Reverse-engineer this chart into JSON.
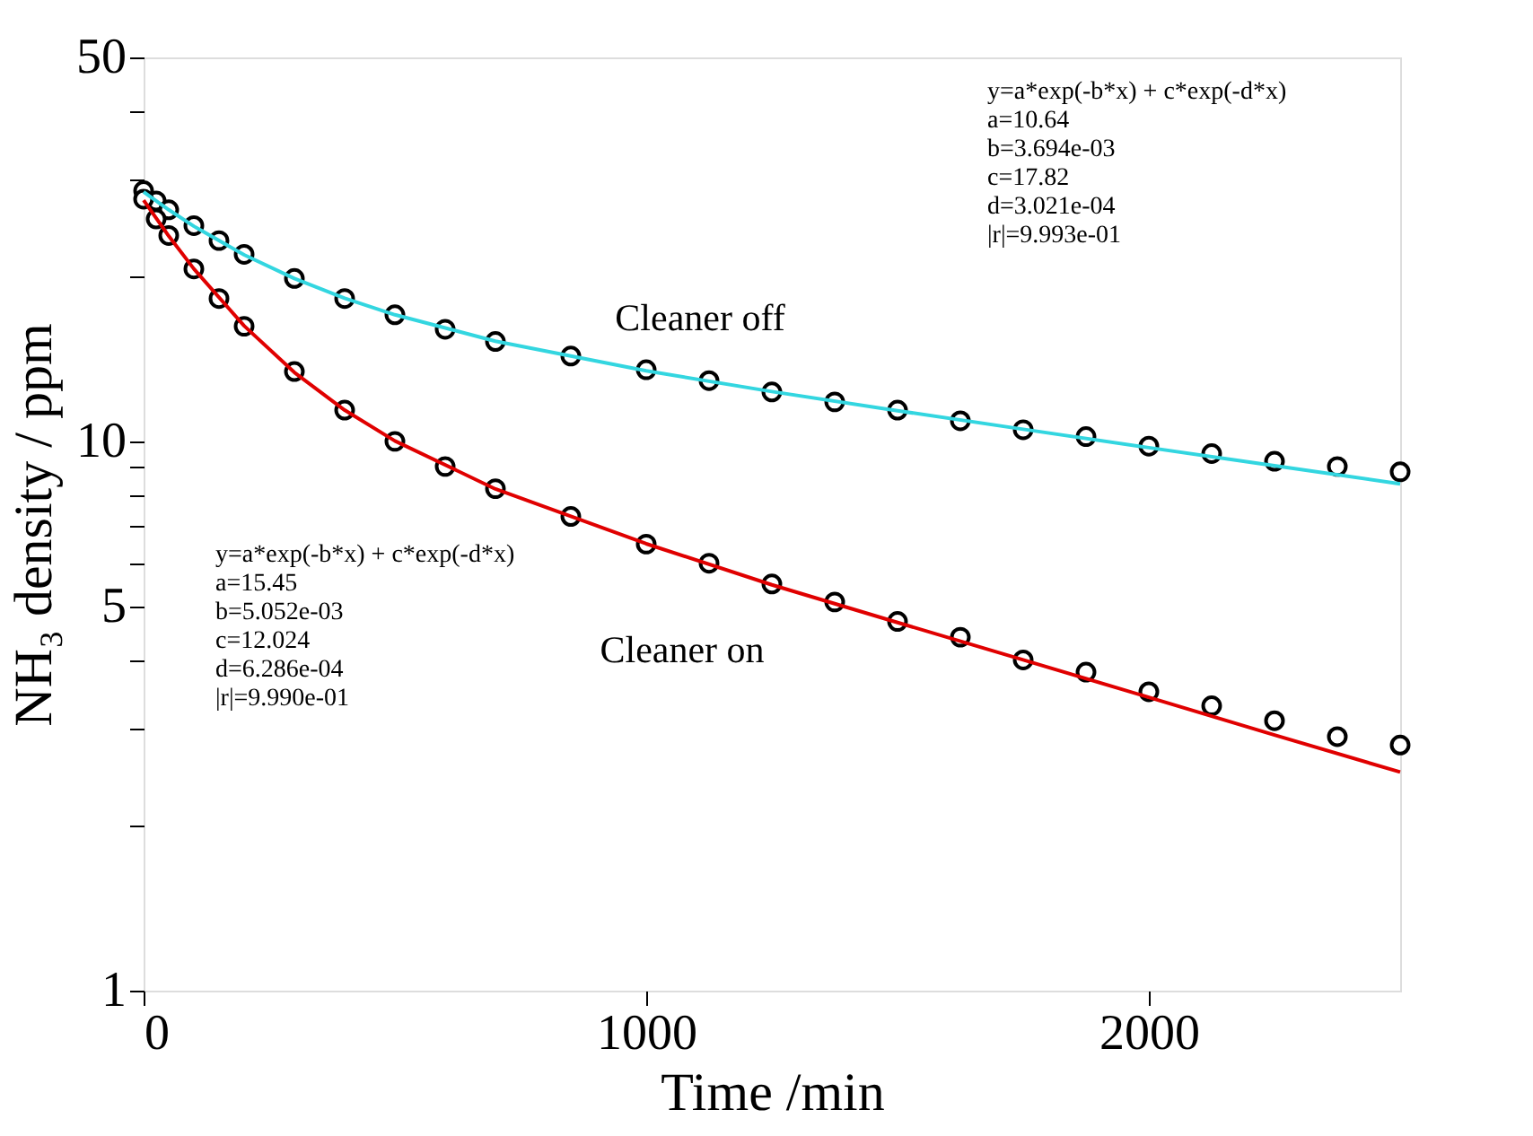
{
  "chart_data": {
    "type": "scatter",
    "xlabel": "Time /min",
    "ylabel": "NH₃ density / ppm",
    "log": "y",
    "xlim": [
      0,
      2500
    ],
    "xticks": [
      0,
      1000,
      2000
    ],
    "ylim": [
      1,
      50
    ],
    "yticks": [
      1,
      {
        "value": 2,
        "label": null
      },
      {
        "value": 3,
        "label": null
      },
      {
        "value": 4,
        "label": null
      },
      5,
      {
        "value": 6,
        "label": null
      },
      {
        "value": 7,
        "label": null
      },
      {
        "value": 8,
        "label": null
      },
      {
        "value": 9,
        "label": null
      },
      10,
      {
        "value": 20,
        "label": null
      },
      {
        "value": 30,
        "label": null
      },
      {
        "value": 40,
        "label": null
      },
      50
    ],
    "grid": false,
    "marker": "circle",
    "series": [
      {
        "name": "Cleaner off",
        "color": "#000000",
        "x": [
          0,
          25,
          50,
          100,
          150,
          200,
          300,
          400,
          500,
          600,
          700,
          850,
          1000,
          1125,
          1250,
          1375,
          1500,
          1625,
          1750,
          1875,
          2000,
          2125,
          2250,
          2375,
          2500
        ],
        "values": [
          28.6,
          27.4,
          26.4,
          24.7,
          23.2,
          21.9,
          19.8,
          18.2,
          17.0,
          16.0,
          15.2,
          14.3,
          13.5,
          12.9,
          12.3,
          11.8,
          11.4,
          10.9,
          10.5,
          10.2,
          9.8,
          9.5,
          9.2,
          9.0,
          8.8
        ]
      },
      {
        "name": "Cleaner on",
        "color": "#000000",
        "x": [
          0,
          25,
          50,
          100,
          150,
          200,
          300,
          400,
          500,
          600,
          700,
          850,
          1000,
          1125,
          1250,
          1375,
          1500,
          1625,
          1750,
          1875,
          2000,
          2125,
          2250,
          2375,
          2500
        ],
        "values": [
          27.6,
          25.4,
          23.7,
          20.6,
          18.2,
          16.2,
          13.4,
          11.4,
          10.0,
          9.0,
          8.2,
          7.3,
          6.5,
          6.0,
          5.5,
          5.1,
          4.7,
          4.4,
          4.0,
          3.8,
          3.5,
          3.3,
          3.1,
          2.9,
          2.8
        ]
      },
      {
        "type": "line",
        "marker": "none",
        "line_style": "solid",
        "color": "#33d6e0",
        "x": [
          0,
          50,
          100,
          200,
          300,
          400,
          500,
          700,
          1000,
          1250,
          1500,
          1750,
          2000,
          2250,
          2500
        ],
        "values": [
          28.46,
          26.4,
          24.64,
          21.86,
          19.79,
          18.22,
          17.0,
          15.22,
          13.44,
          12.32,
          11.37,
          10.52,
          9.74,
          9.03,
          8.37
        ]
      },
      {
        "type": "line",
        "marker": "none",
        "line_style": "solid",
        "color": "#e00000",
        "x": [
          0,
          50,
          100,
          200,
          300,
          400,
          500,
          700,
          1000,
          1250,
          1500,
          1750,
          2000,
          2250,
          2500
        ],
        "values": [
          27.47,
          23.65,
          20.61,
          16.23,
          13.35,
          11.4,
          10.02,
          8.19,
          6.51,
          5.48,
          4.68,
          4.0,
          3.42,
          2.92,
          2.5
        ]
      }
    ],
    "annotations": [
      "y=a*exp(-b*x) + c*exp(-d*x)\na=10.64\nb=3.694e-03\nc=17.82\nd=3.021e-04\n|r|=9.993e-01",
      "y=a*exp(-b*x) + c*exp(-d*x)\na=15.45\nb=5.052e-03\nc=12.024\nd=6.286e-04\n|r|=9.990e-01"
    ]
  }
}
